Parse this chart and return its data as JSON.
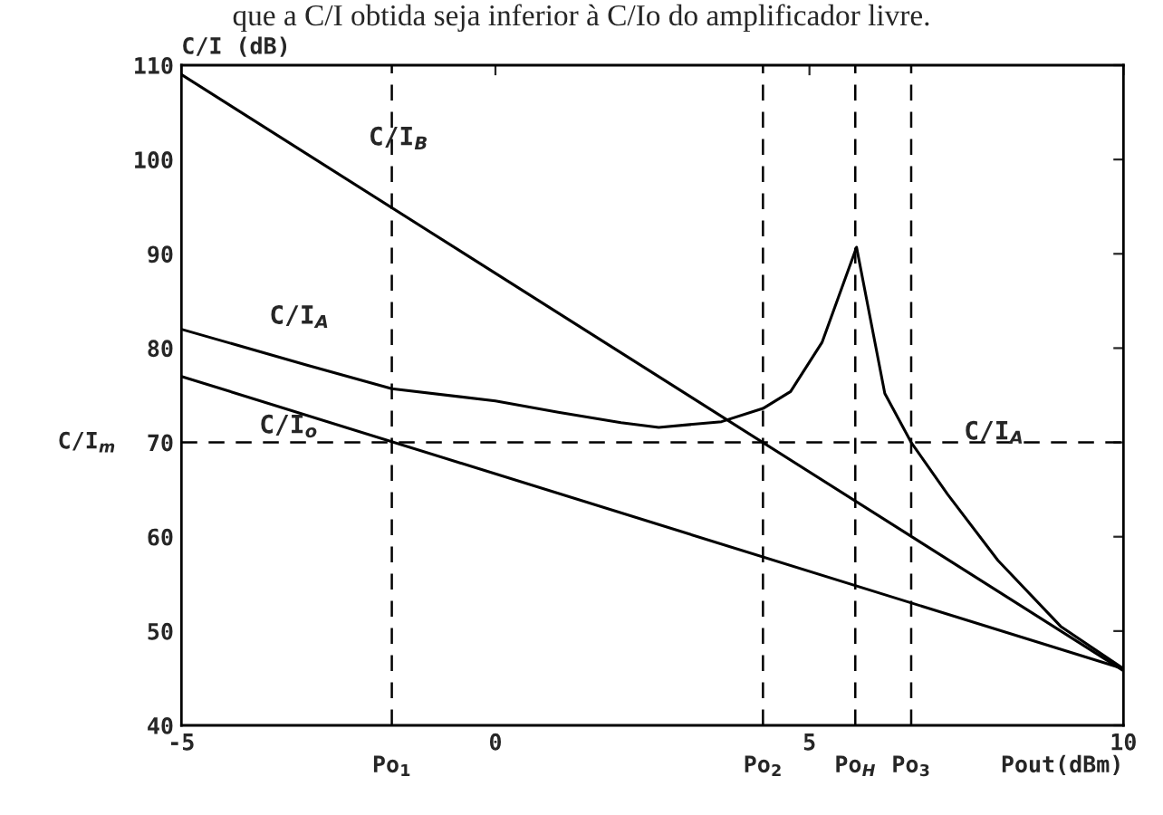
{
  "chart_data": {
    "type": "line",
    "ylabel": "C/I (dB)",
    "xlabel": "Pout(dBm)",
    "xlim": [
      -5,
      10
    ],
    "xticks": [
      -5,
      0,
      5,
      10
    ],
    "ylim": [
      40,
      110
    ],
    "yticks": [
      40,
      50,
      60,
      70,
      80,
      90,
      100,
      110
    ],
    "grid": false,
    "legend": false,
    "line_style": "solid",
    "marker": "none",
    "series": [
      {
        "color": "#000000",
        "x": [
          -5,
          10
        ],
        "values": [
          109,
          45.8
        ]
      },
      {
        "color": "#000000",
        "x": [
          -5,
          10
        ],
        "values": [
          77,
          46
        ]
      },
      {
        "color": "#000000",
        "x": [
          -5,
          -3,
          -1.65,
          0,
          1,
          2,
          2.6,
          3.6,
          4.26,
          4.7,
          5.2,
          5.75,
          6.2,
          6.62,
          7.2,
          8,
          9,
          10
        ],
        "values": [
          82,
          78.2,
          75.7,
          74.4,
          73.2,
          72.1,
          71.6,
          72.2,
          73.6,
          75.4,
          80.6,
          90.7,
          75.2,
          70,
          64.5,
          57.5,
          50.5,
          46
        ]
      }
    ],
    "ref_lines": [
      {
        "axis": "y",
        "value": 70,
        "label": "C/I$_{m}$",
        "line_style": "dashed",
        "color": "#000000"
      },
      {
        "axis": "x",
        "value": -1.65,
        "label": "Po$_{1}$",
        "line_style": "dashed",
        "color": "#000000"
      },
      {
        "axis": "x",
        "value": 4.26,
        "label": "Po$_{2}$",
        "line_style": "dashed",
        "color": "#000000"
      },
      {
        "axis": "x",
        "value": 5.73,
        "label": "Po$_{H}$",
        "line_style": "dashed",
        "color": "#000000"
      },
      {
        "axis": "x",
        "value": 6.62,
        "label": "Po$_{3}$",
        "line_style": "dashed",
        "color": "#000000"
      }
    ],
    "annotations": [
      "que a C/I obtida seja inferior à C/Io do amplificador livre.",
      {
        "text": "C/I$_{B}$",
        "x": -2.5,
        "y": 98.5
      },
      {
        "text": "C/I$_{A}$",
        "x": -4,
        "y": 80.1
      },
      {
        "text": "C/I$_{o}$",
        "x": -4,
        "y": 74.9
      },
      {
        "text": "C/I$_{A}$",
        "x": 6.9,
        "y": 67.3
      }
    ]
  }
}
